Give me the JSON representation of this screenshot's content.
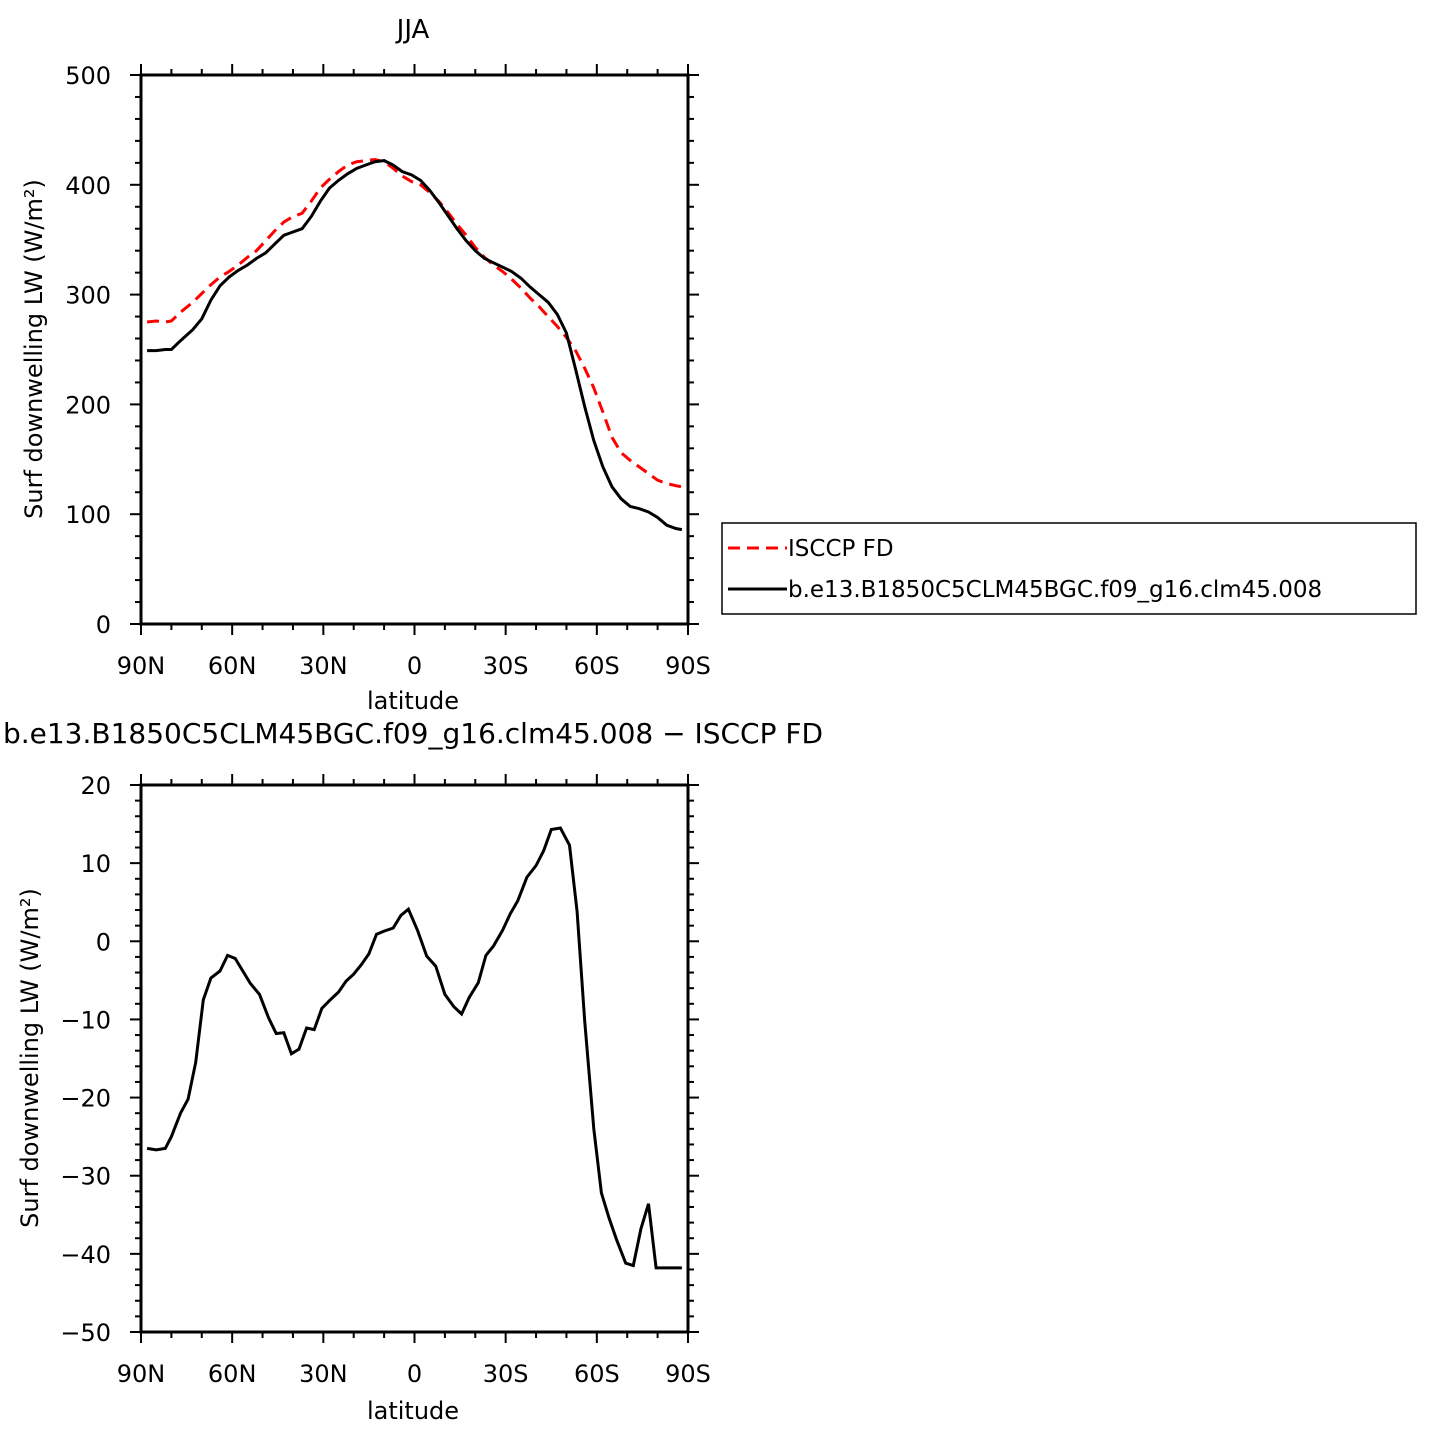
{
  "chart_data": [
    {
      "type": "line",
      "title": "JJA",
      "xlabel": "latitude",
      "ylabel": "Surf downwelling LW (W/m²)",
      "ylim": [
        0,
        500
      ],
      "xlim": [
        90,
        -90
      ],
      "x_ticks": [
        90,
        60,
        30,
        0,
        -30,
        -60,
        -90
      ],
      "x_tick_labels": [
        "90N",
        "60N",
        "30N",
        "0",
        "30S",
        "60S",
        "90S"
      ],
      "y_ticks": [
        0,
        100,
        200,
        300,
        400,
        500
      ],
      "y_tick_labels": [
        "0",
        "100",
        "200",
        "300",
        "400",
        "500"
      ],
      "legend": "right",
      "series": [
        {
          "name": "ISCCP FD",
          "color": "#ff0000",
          "dash": "dashed",
          "x": [
            88,
            85,
            82,
            80,
            77,
            73,
            70,
            67,
            64,
            61,
            58,
            55,
            52,
            49,
            46,
            43,
            40,
            37,
            34,
            31,
            28,
            25,
            22,
            19,
            16,
            13,
            10,
            7,
            4,
            1,
            -2,
            -5,
            -8,
            -11,
            -14,
            -17,
            -20,
            -23,
            -26,
            -29,
            -32,
            -35,
            -38,
            -41,
            -44,
            -47,
            -50,
            -53,
            -56,
            -59,
            -62,
            -65,
            -68,
            -71,
            -74,
            -77,
            -80,
            -83,
            -86,
            -88
          ],
          "y": [
            275,
            276,
            275,
            276,
            284,
            293,
            301,
            309,
            316,
            321,
            327,
            334,
            340,
            349,
            358,
            366,
            371,
            374,
            385,
            397,
            405,
            412,
            418,
            421,
            422,
            423,
            421,
            415,
            408,
            403,
            400,
            393,
            385,
            375,
            364,
            354,
            343,
            334,
            327,
            321,
            314,
            306,
            297,
            289,
            280,
            271,
            261,
            249,
            233,
            215,
            193,
            170,
            156,
            149,
            143,
            137,
            131,
            128,
            126,
            125
          ]
        },
        {
          "name": "b.e13.B1850C5CLM45BGC.f09_g16.clm45.008",
          "color": "#000000",
          "dash": "solid",
          "x": [
            88,
            85,
            82,
            80,
            77,
            73,
            70,
            67,
            64,
            61,
            58,
            55,
            52,
            49,
            46,
            43,
            40,
            37,
            34,
            31,
            28,
            25,
            22,
            19,
            16,
            13,
            10,
            7,
            4,
            1,
            -2,
            -5,
            -8,
            -11,
            -14,
            -17,
            -20,
            -23,
            -26,
            -29,
            -32,
            -35,
            -38,
            -41,
            -44,
            -47,
            -50,
            -53,
            -56,
            -59,
            -62,
            -65,
            -68,
            -71,
            -74,
            -77,
            -80,
            -83,
            -86,
            -88
          ],
          "y": [
            249,
            249,
            250,
            250,
            258,
            268,
            278,
            295,
            308,
            316,
            322,
            327,
            333,
            338,
            346,
            354,
            357,
            360,
            371,
            385,
            397,
            404,
            410,
            415,
            418,
            421,
            422,
            418,
            412,
            409,
            404,
            395,
            384,
            372,
            360,
            349,
            340,
            333,
            329,
            325,
            321,
            315,
            307,
            300,
            293,
            282,
            265,
            232,
            198,
            167,
            143,
            125,
            114,
            107,
            105,
            102,
            97,
            90,
            87,
            86
          ]
        }
      ]
    },
    {
      "type": "line",
      "title": "b.e13.B1850C5CLM45BGC.f09_g16.clm45.008 − ISCCP FD",
      "xlabel": "latitude",
      "ylabel": "Surf downwelling LW (W/m²)",
      "ylim": [
        -50,
        20
      ],
      "xlim": [
        90,
        -90
      ],
      "x_ticks": [
        90,
        60,
        30,
        0,
        -30,
        -60,
        -90
      ],
      "x_tick_labels": [
        "90N",
        "60N",
        "30N",
        "0",
        "30S",
        "60S",
        "90S"
      ],
      "y_ticks": [
        -50,
        -40,
        -30,
        -20,
        -10,
        0,
        10,
        20
      ],
      "y_tick_labels": [
        "−50",
        "−40",
        "−30",
        "−20",
        "−10",
        "0",
        "10",
        "20"
      ],
      "series": [
        {
          "color": "#000000",
          "dash": "solid",
          "x": [
            88,
            85,
            82,
            80,
            77,
            74.5,
            72,
            69.5,
            67,
            64,
            61.5,
            59,
            56.5,
            54,
            51,
            48,
            45.5,
            43,
            40.5,
            38,
            35.5,
            33,
            30.5,
            28,
            25,
            22.5,
            20,
            17.5,
            15,
            12.5,
            10,
            7,
            4.5,
            2,
            -1,
            -4,
            -7,
            -10,
            -13,
            -15.5,
            -18,
            -21,
            -23.5,
            -26,
            -29,
            -31.5,
            -34,
            -37,
            -40,
            -42.5,
            -45,
            -48,
            -51,
            -53.5,
            -56,
            -59,
            -61.5,
            -64,
            -66.5,
            -69.5,
            -72,
            -74.5,
            -77,
            -79.5,
            -82,
            -85,
            -88
          ],
          "y": [
            -26.5,
            -26.7,
            -26.5,
            -25,
            -22,
            -20.2,
            -15.5,
            -7.5,
            -4.7,
            -3.8,
            -1.8,
            -2.2,
            -3.8,
            -5.4,
            -6.8,
            -9.8,
            -11.8,
            -11.7,
            -14.4,
            -13.8,
            -11.1,
            -11.3,
            -8.6,
            -7.6,
            -6.5,
            -5.1,
            -4.2,
            -3,
            -1.6,
            0.9,
            1.3,
            1.7,
            3.3,
            4.1,
            1.4,
            -1.9,
            -3.2,
            -6.8,
            -8.4,
            -9.3,
            -7.2,
            -5.3,
            -1.8,
            -0.6,
            1.4,
            3.5,
            5.2,
            8.2,
            9.7,
            11.6,
            14.3,
            14.5,
            12.3,
            3.8,
            -10.2,
            -24,
            -32.2,
            -35.4,
            -38.2,
            -41.2,
            -41.5,
            -36.8,
            -33.6,
            -41.8,
            -41.8,
            -41.8,
            -41.8
          ]
        }
      ]
    }
  ]
}
